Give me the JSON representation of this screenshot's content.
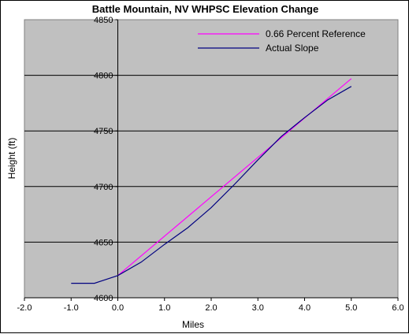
{
  "chart_data": {
    "type": "line",
    "title": "Battle Mountain, NV WHPSC Elevation Change",
    "xlabel": "Miles",
    "ylabel": "Height (ft)",
    "xlim": [
      -2.0,
      6.0
    ],
    "ylim": [
      4600,
      4850
    ],
    "x_ticks": [
      "-2.0",
      "-1.0",
      "0.0",
      "1.0",
      "2.0",
      "3.0",
      "4.0",
      "5.0",
      "6.0"
    ],
    "y_ticks": [
      "4600",
      "4650",
      "4700",
      "4750",
      "4800",
      "4850"
    ],
    "grid": "horizontal",
    "plot_background": "#c0c0c0",
    "legend_position": "top-right",
    "series": [
      {
        "name": "0.66 Percent Reference",
        "color": "#ff00ff",
        "x": [
          0.0,
          5.0
        ],
        "y": [
          4620,
          4797
        ]
      },
      {
        "name": "Actual Slope",
        "color": "#000080",
        "x": [
          -1.0,
          -0.5,
          0.0,
          0.5,
          1.0,
          1.5,
          2.0,
          2.5,
          3.0,
          3.5,
          4.0,
          4.5,
          5.0
        ],
        "y": [
          4613,
          4613,
          4620,
          4632,
          4648,
          4663,
          4681,
          4702,
          4724,
          4745,
          4762,
          4778,
          4790
        ]
      }
    ]
  }
}
